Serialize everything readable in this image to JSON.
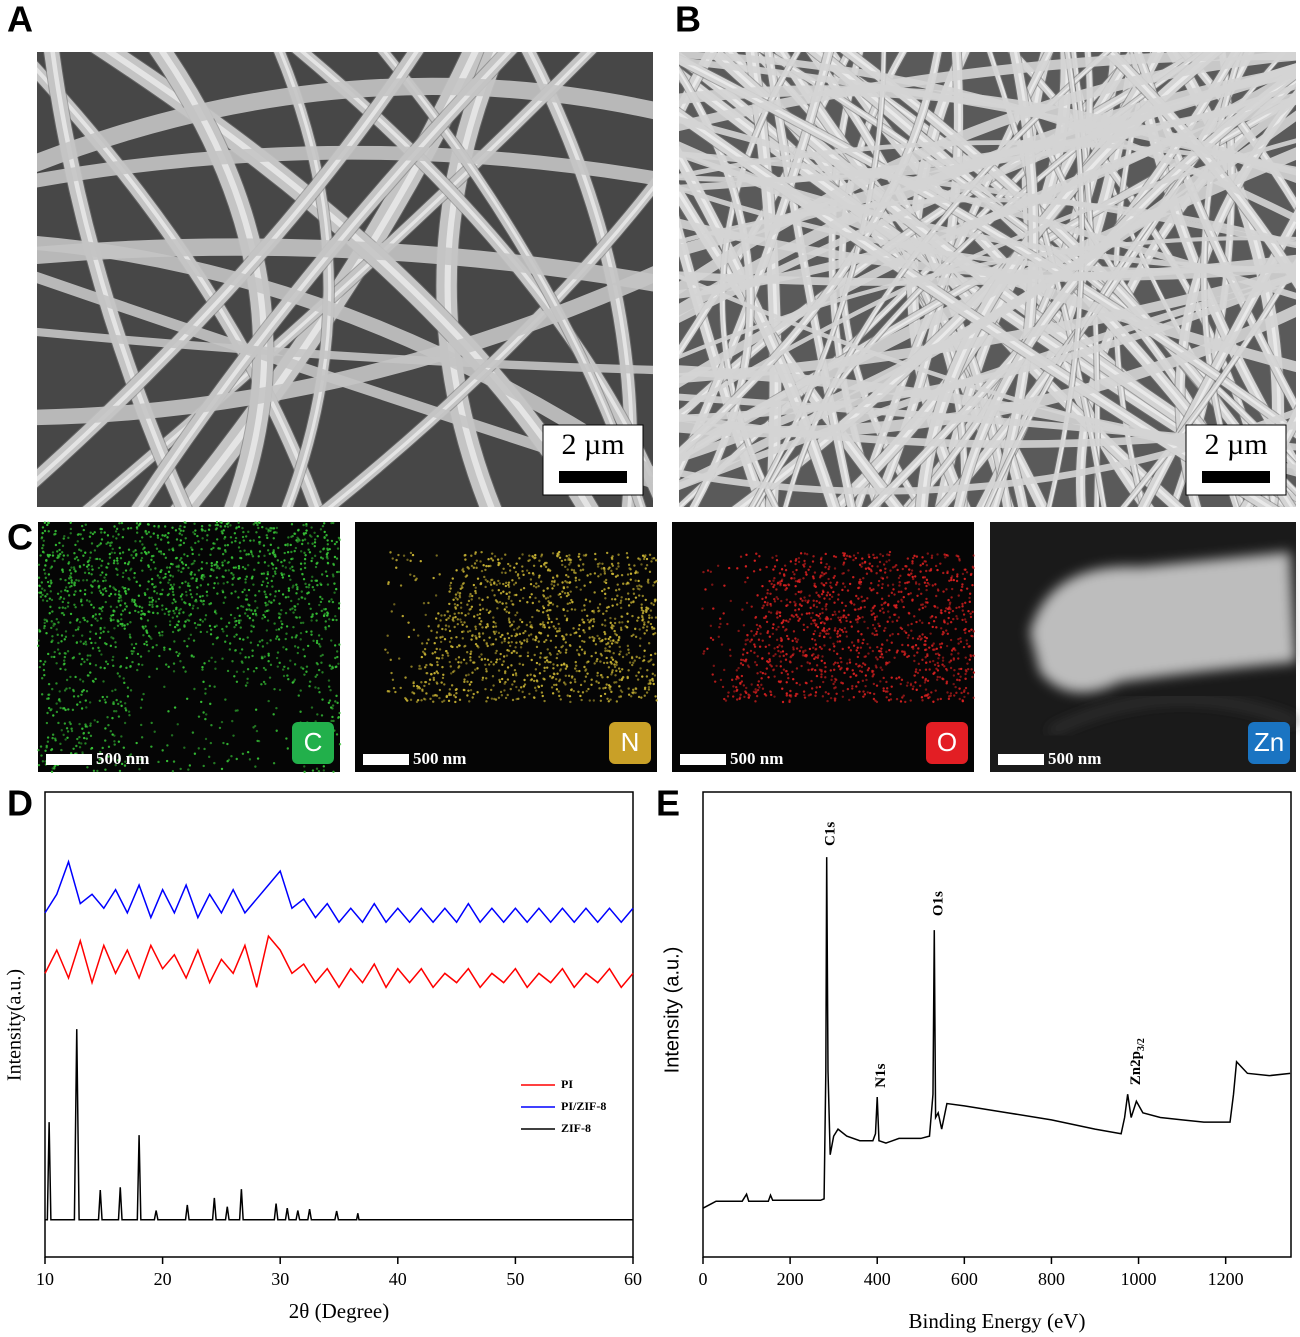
{
  "panel_labels": [
    "A",
    "B",
    "C",
    "D",
    "E"
  ],
  "sem_images": [
    {
      "scale_bar": "2 µm"
    },
    {
      "scale_bar": "2 µm"
    }
  ],
  "eds_maps": [
    {
      "element": "C",
      "color": "#22b04b",
      "scale_bar": "500 nm"
    },
    {
      "element": "N",
      "color": "#c9a027",
      "scale_bar": "500 nm"
    },
    {
      "element": "O",
      "color": "#e31e24",
      "scale_bar": "500 nm"
    },
    {
      "element": "Zn",
      "color": "#1a74c2",
      "scale_bar": "500 nm"
    }
  ],
  "chart_data": [
    {
      "type": "line",
      "xlabel": "2θ (Degree)",
      "ylabel": "Intensity(a.u.)",
      "xlim": [
        10,
        60
      ],
      "xticks": [
        10,
        20,
        30,
        40,
        50,
        60
      ],
      "ylim": [
        0,
        100
      ],
      "series": [
        {
          "name": "PI",
          "color": "#ff0000",
          "x": [
            10,
            11,
            12,
            13,
            14,
            15,
            16,
            17,
            18,
            19,
            20,
            21,
            22,
            23,
            24,
            25,
            26,
            27,
            28,
            29,
            30,
            31,
            32,
            33,
            34,
            35,
            36,
            37,
            38,
            39,
            40,
            41,
            42,
            43,
            44,
            45,
            46,
            47,
            48,
            49,
            50,
            51,
            52,
            53,
            54,
            55,
            56,
            57,
            58,
            59,
            60
          ],
          "values": [
            61,
            66,
            60,
            68,
            59,
            67,
            61,
            66,
            60,
            67,
            62,
            65,
            60,
            66,
            59,
            64,
            61,
            67,
            58,
            69,
            66,
            61,
            63,
            59,
            62,
            58,
            62,
            59,
            63,
            58,
            62,
            59,
            62,
            58,
            61,
            59,
            62,
            58,
            61,
            59,
            62,
            58,
            61,
            59,
            62,
            58,
            61,
            59,
            62,
            58,
            61
          ]
        },
        {
          "name": "PI/ZIF-8",
          "color": "#0000ff",
          "x": [
            10,
            11,
            12,
            13,
            14,
            15,
            16,
            17,
            18,
            19,
            20,
            21,
            22,
            23,
            24,
            25,
            26,
            27,
            28,
            29,
            30,
            31,
            32,
            33,
            34,
            35,
            36,
            37,
            38,
            39,
            40,
            41,
            42,
            43,
            44,
            45,
            46,
            47,
            48,
            49,
            50,
            51,
            52,
            53,
            54,
            55,
            56,
            57,
            58,
            59,
            60
          ],
          "values": [
            74,
            78,
            85,
            76,
            78,
            75,
            79,
            74,
            80,
            73,
            79,
            74,
            80,
            73,
            78,
            74,
            79,
            74,
            77,
            80,
            83,
            75,
            77,
            73,
            76,
            72,
            75,
            72,
            76,
            72,
            75,
            72,
            75,
            72,
            75,
            72,
            76,
            72,
            75,
            72,
            75,
            72,
            75,
            72,
            75,
            72,
            75,
            72,
            75,
            72,
            75
          ]
        },
        {
          "name": "ZIF-8",
          "color": "#000000",
          "x": [
            10,
            10.2,
            10.35,
            10.5,
            12.5,
            12.7,
            12.9,
            14.55,
            14.7,
            14.85,
            16.25,
            16.4,
            16.55,
            17.85,
            18,
            18.15,
            19.3,
            19.45,
            19.6,
            21.95,
            22.1,
            22.25,
            24.25,
            24.4,
            24.55,
            25.35,
            25.5,
            25.65,
            26.55,
            26.7,
            26.85,
            29.5,
            29.65,
            29.8,
            30.45,
            30.6,
            30.75,
            31.35,
            31.5,
            31.65,
            32.35,
            32.5,
            32.65,
            34.65,
            34.8,
            34.95,
            36.5,
            36.6,
            36.7,
            60
          ],
          "values": [
            8,
            8,
            29,
            8,
            8,
            49,
            8,
            8,
            14.4,
            8,
            8,
            15,
            8,
            8,
            26.2,
            8,
            8,
            10,
            8,
            8,
            11.2,
            8,
            8,
            12.7,
            8,
            8,
            10.8,
            8,
            8,
            14.6,
            8,
            8,
            11.5,
            8,
            8,
            10.5,
            8,
            8,
            10,
            8,
            8,
            10.3,
            8,
            8,
            9.9,
            8,
            8,
            9.4,
            8,
            8
          ]
        }
      ]
    },
    {
      "type": "line",
      "xlabel": "Binding Energy (eV)",
      "ylabel": "Intensity (a.u.)",
      "xlim": [
        0,
        1350
      ],
      "xticks": [
        0,
        200,
        400,
        600,
        800,
        1000,
        1200
      ],
      "ylim": [
        0,
        100
      ],
      "series": [
        {
          "color": "#000000",
          "x": [
            0,
            20,
            30,
            90,
            100,
            105,
            150,
            155,
            160,
            270,
            278,
            282,
            284,
            287,
            292,
            300,
            310,
            330,
            360,
            390,
            396,
            400,
            404,
            420,
            450,
            500,
            520,
            528,
            531,
            534,
            540,
            548,
            560,
            600,
            700,
            800,
            900,
            960,
            968,
            975,
            983,
            995,
            1010,
            1050,
            1100,
            1150,
            1210,
            1218,
            1225,
            1235,
            1250,
            1300,
            1348
          ],
          "values": [
            10.5,
            11.5,
            12,
            12,
            13.5,
            12,
            12,
            13.3,
            12.2,
            12.2,
            12.5,
            40,
            86,
            40,
            22,
            26,
            27.5,
            26,
            25,
            25,
            26.5,
            34.4,
            25,
            24.5,
            25.5,
            25.5,
            26,
            35,
            70.3,
            30,
            31,
            27.5,
            33,
            32.5,
            31,
            29.5,
            27.5,
            26.5,
            30,
            35,
            30,
            33.5,
            31,
            30,
            29.5,
            29,
            29,
            35,
            42,
            41,
            39.5,
            39,
            39.5
          ]
        }
      ],
      "annotations": [
        {
          "text": "C1s",
          "x": 284,
          "y": 91
        },
        {
          "text": "N1s",
          "x": 400,
          "y": 39
        },
        {
          "text": "O1s",
          "x": 531,
          "y": 76
        },
        {
          "text": "Zn2p",
          "subscript": "3/2",
          "x": 985,
          "y": 42
        }
      ]
    }
  ]
}
